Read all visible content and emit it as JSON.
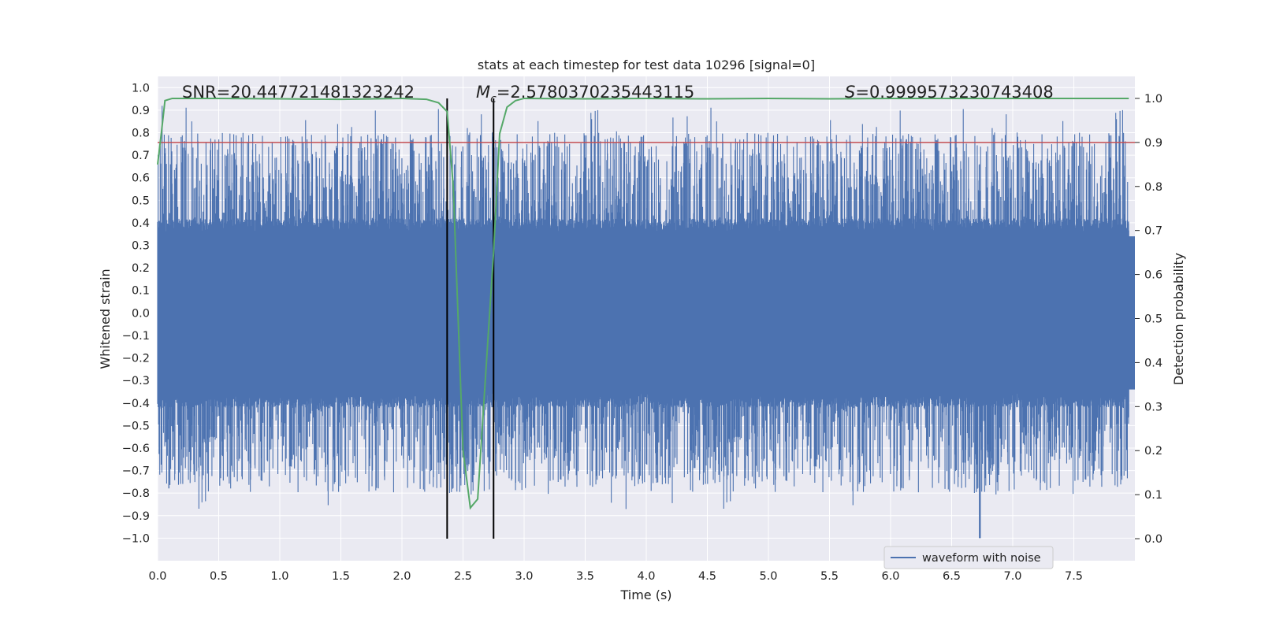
{
  "chart_data": {
    "type": "line",
    "title": "stats at each timestep for test data 10296 [signal=0]",
    "xlabel": "Time (s)",
    "ylabel": "Whitened strain",
    "y2label": "Detection probability",
    "xlim": [
      0.0,
      8.0
    ],
    "ylim": [
      -1.1,
      1.05
    ],
    "y2lim": [
      -0.05,
      1.05
    ],
    "xticks": [
      "0.0",
      "0.5",
      "1.0",
      "1.5",
      "2.0",
      "2.5",
      "3.0",
      "3.5",
      "4.0",
      "4.5",
      "5.0",
      "5.5",
      "6.0",
      "6.5",
      "7.0",
      "7.5"
    ],
    "yticks": [
      "1.0",
      "0.9",
      "0.8",
      "0.7",
      "0.6",
      "0.5",
      "0.4",
      "0.3",
      "0.2",
      "0.1",
      "0.0",
      "−0.1",
      "−0.2",
      "−0.3",
      "−0.4",
      "−0.5",
      "−0.6",
      "−0.7",
      "−0.8",
      "−0.9",
      "−1.0"
    ],
    "y2ticks": [
      "0.0",
      "0.1",
      "0.2",
      "0.3",
      "0.4",
      "0.5",
      "0.6",
      "0.7",
      "0.8",
      "0.9",
      "1.0"
    ],
    "stats": {
      "snr": "SNR=20.447721481323242",
      "mc_symbol": "M",
      "mc_sub": "c",
      "mc_value": "=2.5780370235443115",
      "s_symbol": "S",
      "s_value": "=0.9999573230743408"
    },
    "threshold": {
      "axis": "right",
      "value": 0.9,
      "color": "#c44e52"
    },
    "event_window": {
      "x": [
        2.37,
        2.75
      ],
      "color": "#000000"
    },
    "waveform": {
      "name": "waveform with noise",
      "color": "#4c72b0",
      "samples": 4096,
      "envelope_core": 0.42,
      "spike_max": 0.93,
      "spike_min": -1.0,
      "min_time": 6.73
    },
    "probability": {
      "color": "#55a868",
      "t": [
        0.0,
        0.03,
        0.06,
        0.12,
        0.5,
        1.0,
        1.5,
        2.0,
        2.2,
        2.3,
        2.37,
        2.42,
        2.46,
        2.5,
        2.56,
        2.62,
        2.68,
        2.75,
        2.8,
        2.86,
        2.93,
        3.0,
        3.5,
        4.0,
        4.5,
        5.0,
        5.5,
        6.0,
        6.5,
        7.0,
        7.5,
        7.95
      ],
      "p": [
        0.85,
        0.92,
        0.995,
        1.0,
        1.0,
        0.999,
        0.998,
        1.0,
        0.998,
        0.99,
        0.97,
        0.8,
        0.5,
        0.2,
        0.07,
        0.09,
        0.35,
        0.65,
        0.92,
        0.98,
        0.995,
        1.0,
        0.999,
        1.0,
        0.999,
        1.0,
        0.999,
        1.0,
        1.0,
        1.0,
        1.0,
        1.0
      ]
    },
    "legend": {
      "placement": "lower-right",
      "entries": [
        "waveform with noise"
      ]
    }
  }
}
